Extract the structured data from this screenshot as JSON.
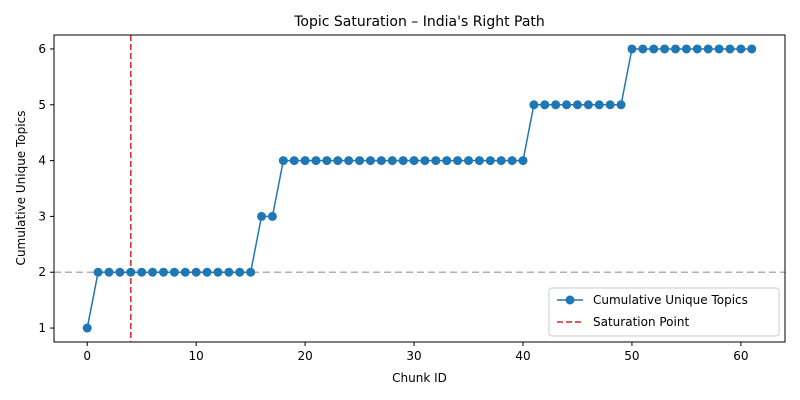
{
  "chart_data": {
    "type": "line",
    "title": "Topic Saturation – India's Right Path",
    "xlabel": "Chunk ID",
    "ylabel": "Cumulative Unique Topics",
    "xlim": [
      -3.05,
      64.05
    ],
    "ylim": [
      0.75,
      6.25
    ],
    "x_ticks": [
      0,
      10,
      20,
      30,
      40,
      50,
      60
    ],
    "y_ticks": [
      1,
      2,
      3,
      4,
      5,
      6
    ],
    "grid": false,
    "legend_position": "lower-right",
    "series": [
      {
        "name": "Cumulative Unique Topics",
        "color": "#1f77b4",
        "marker": "circle",
        "x": [
          0,
          1,
          2,
          3,
          4,
          5,
          6,
          7,
          8,
          9,
          10,
          11,
          12,
          13,
          14,
          15,
          16,
          17,
          18,
          19,
          20,
          21,
          22,
          23,
          24,
          25,
          26,
          27,
          28,
          29,
          30,
          31,
          32,
          33,
          34,
          35,
          36,
          37,
          38,
          39,
          40,
          41,
          42,
          43,
          44,
          45,
          46,
          47,
          48,
          49,
          50,
          51,
          52,
          53,
          54,
          55,
          56,
          57,
          58,
          59,
          60,
          61
        ],
        "values": [
          1,
          2,
          2,
          2,
          2,
          2,
          2,
          2,
          2,
          2,
          2,
          2,
          2,
          2,
          2,
          2,
          3,
          3,
          4,
          4,
          4,
          4,
          4,
          4,
          4,
          4,
          4,
          4,
          4,
          4,
          4,
          4,
          4,
          4,
          4,
          4,
          4,
          4,
          4,
          4,
          4,
          5,
          5,
          5,
          5,
          5,
          5,
          5,
          5,
          5,
          6,
          6,
          6,
          6,
          6,
          6,
          6,
          6,
          6,
          6,
          6,
          6
        ]
      }
    ],
    "reference_lines": [
      {
        "name": "Saturation Point",
        "orientation": "vertical",
        "value": 4,
        "color": "#d62728",
        "style": "dashed",
        "in_legend": true
      },
      {
        "name": "baseline",
        "orientation": "horizontal",
        "value": 2,
        "color": "#b0b0b0",
        "style": "dashed",
        "in_legend": false
      }
    ]
  }
}
